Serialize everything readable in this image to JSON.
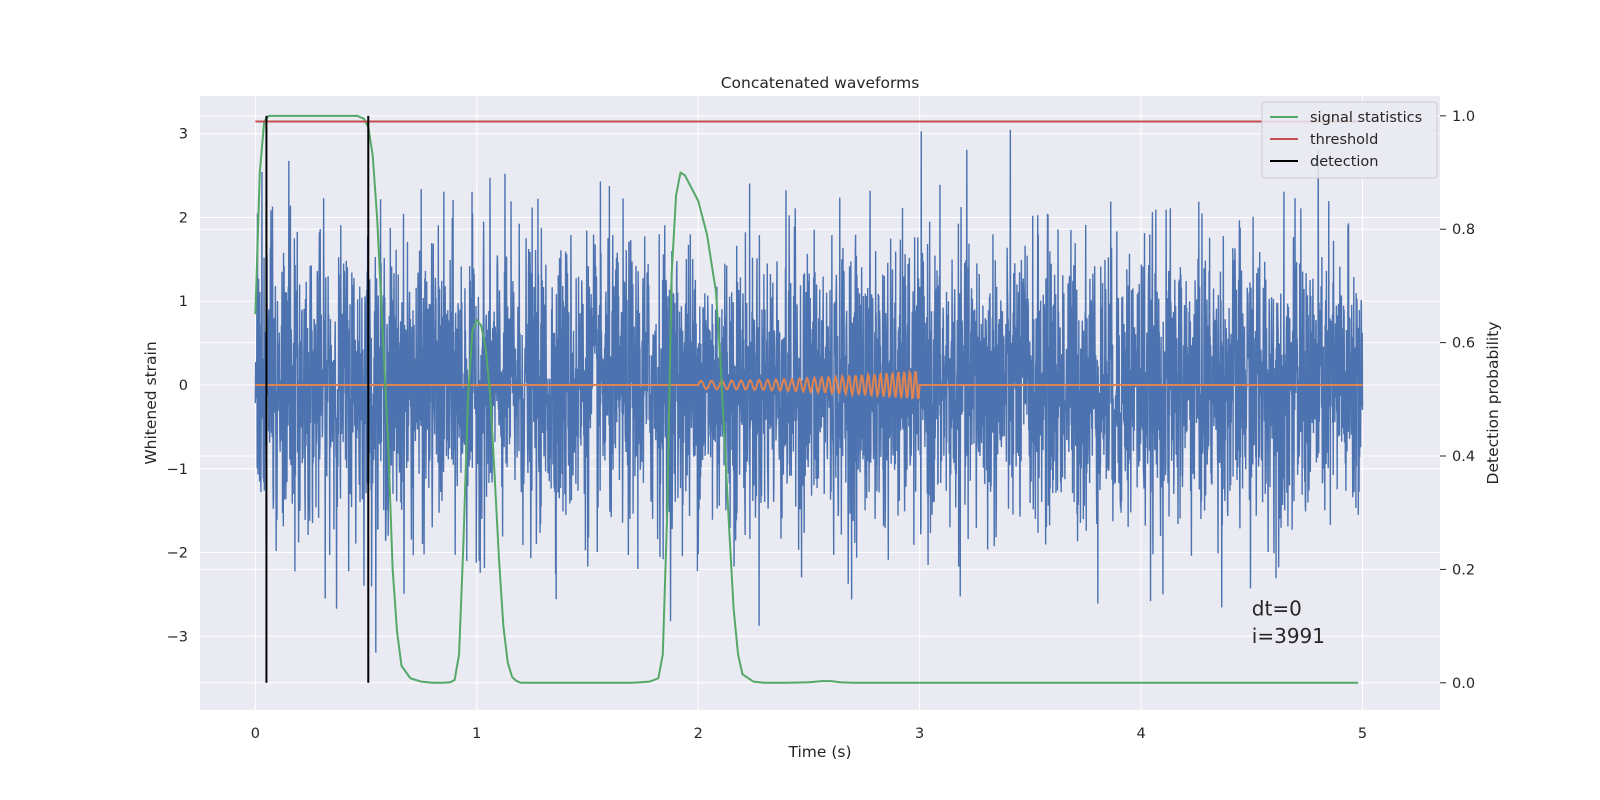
{
  "chart_data": {
    "type": "line",
    "title": "Concatenated waveforms",
    "xlabel": "Time (s)",
    "ylabel": "Whitened strain",
    "ylabel_right": "Detection probability",
    "xlim": [
      -0.25,
      5.35
    ],
    "ylim": [
      -3.88,
      3.45
    ],
    "ylim_right": [
      -0.048,
      1.035
    ],
    "x_ticks": [
      0,
      1,
      2,
      3,
      4,
      5
    ],
    "y_ticks": [
      -3,
      -2,
      -1,
      0,
      1,
      2,
      3
    ],
    "y_ticks_right": [
      0.0,
      0.2,
      0.4,
      0.6,
      0.8,
      1.0
    ],
    "x_tick_labels": [
      "0",
      "1",
      "2",
      "3",
      "4",
      "5"
    ],
    "y_tick_labels": [
      "−3",
      "−2",
      "−1",
      "0",
      "1",
      "2",
      "3"
    ],
    "y_tick_labels_right": [
      "0.0",
      "0.2",
      "0.4",
      "0.6",
      "0.8",
      "1.0"
    ],
    "grid": true,
    "legend_position": "top-right",
    "colors": {
      "strain": "#4c72b0",
      "template": "#dd8452",
      "signal_statistics": "#55a868",
      "threshold": "#c44e52",
      "detection": "#000000",
      "plot_background": "#eaeaf2",
      "grid": "#ffffff"
    },
    "series": [
      {
        "name": "signal statistics",
        "axis": "right",
        "x": [
          0.0,
          0.02,
          0.04,
          0.06,
          0.08,
          0.12,
          0.2,
          0.3,
          0.4,
          0.46,
          0.49,
          0.51,
          0.53,
          0.55,
          0.57,
          0.6,
          0.62,
          0.64,
          0.66,
          0.7,
          0.75,
          0.8,
          0.85,
          0.88,
          0.9,
          0.92,
          0.94,
          0.96,
          0.98,
          1.0,
          1.02,
          1.04,
          1.06,
          1.08,
          1.1,
          1.12,
          1.14,
          1.16,
          1.18,
          1.2,
          1.25,
          1.3,
          1.5,
          1.7,
          1.78,
          1.82,
          1.84,
          1.86,
          1.88,
          1.9,
          1.92,
          1.94,
          1.96,
          2.0,
          2.04,
          2.08,
          2.1,
          2.12,
          2.14,
          2.16,
          2.18,
          2.2,
          2.25,
          2.3,
          2.4,
          2.5,
          2.56,
          2.6,
          2.64,
          2.7,
          3.0,
          3.5,
          4.0,
          4.5,
          4.98
        ],
        "y": [
          0.65,
          0.9,
          0.99,
          1.0,
          1.0,
          1.0,
          1.0,
          1.0,
          1.0,
          1.0,
          0.995,
          0.98,
          0.93,
          0.82,
          0.66,
          0.42,
          0.2,
          0.09,
          0.03,
          0.008,
          0.002,
          0.0,
          0.0,
          0.001,
          0.005,
          0.05,
          0.25,
          0.5,
          0.62,
          0.64,
          0.63,
          0.59,
          0.51,
          0.37,
          0.22,
          0.1,
          0.035,
          0.01,
          0.003,
          0.0,
          0.0,
          0.0,
          0.0,
          0.0,
          0.002,
          0.008,
          0.05,
          0.3,
          0.72,
          0.86,
          0.9,
          0.895,
          0.88,
          0.85,
          0.79,
          0.69,
          0.57,
          0.42,
          0.27,
          0.13,
          0.05,
          0.015,
          0.002,
          0.0,
          0.0,
          0.001,
          0.003,
          0.003,
          0.001,
          0.0,
          0.0,
          0.0,
          0.0,
          0.0,
          0.0
        ]
      },
      {
        "name": "threshold",
        "axis": "right",
        "x": [
          0.0,
          4.98
        ],
        "y": [
          0.99,
          0.99
        ]
      },
      {
        "name": "detection",
        "axis": "right",
        "x": [
          0.05,
          0.51
        ],
        "type": "vlines",
        "y_range": [
          0.0,
          1.0
        ]
      },
      {
        "axis": "left",
        "type": "noise",
        "description_values": {
          "x_start": 0.0,
          "x_end": 5.0,
          "std": 0.85,
          "min": -3.55,
          "max": 3.05
        }
      },
      {
        "axis": "left",
        "type": "chirp",
        "x_start": 2.0,
        "x_end": 3.0,
        "amplitude_start": 0.05,
        "amplitude_end": 0.18
      }
    ],
    "annotations": [
      {
        "text": "dt=0",
        "x": 4.5,
        "y": -2.75
      },
      {
        "text": "i=3991",
        "x": 4.5,
        "y": -3.08
      }
    ]
  },
  "legend": [
    {
      "label": "signal statistics",
      "color": "#55a868"
    },
    {
      "label": "threshold",
      "color": "#c44e52"
    },
    {
      "label": "detection",
      "color": "#000000"
    }
  ]
}
